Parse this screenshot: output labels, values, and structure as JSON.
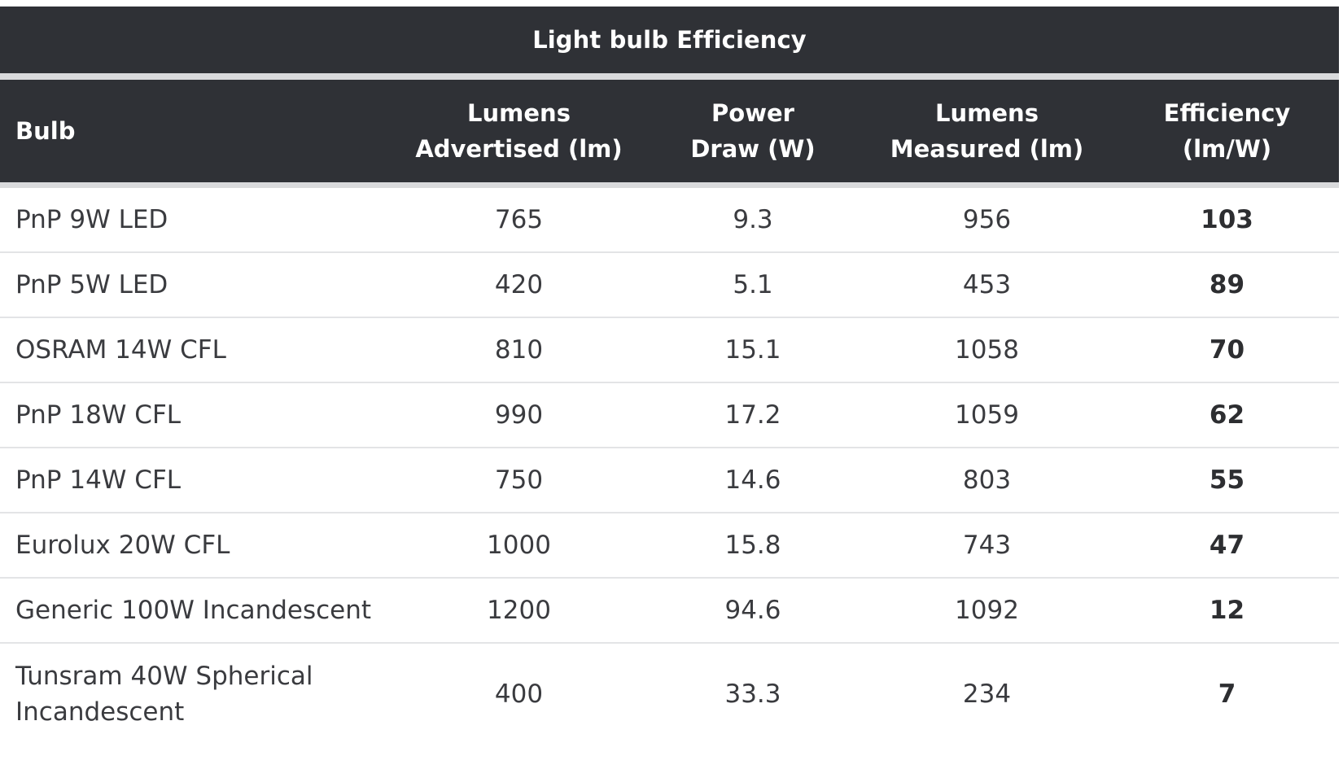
{
  "chart_data": {
    "type": "table",
    "title": "Light bulb Efficiency",
    "columns": [
      "Bulb",
      "Lumens\nAdvertised (lm)",
      "Power\nDraw (W)",
      "Lumens\nMeasured (lm)",
      "Efficiency\n(lm/W)"
    ],
    "rows": [
      {
        "bulb": "PnP 9W LED",
        "lumens_advertised": "765",
        "power_draw": "9.3",
        "lumens_measured": "956",
        "efficiency": "103"
      },
      {
        "bulb": "PnP 5W LED",
        "lumens_advertised": "420",
        "power_draw": "5.1",
        "lumens_measured": "453",
        "efficiency": "89"
      },
      {
        "bulb": "OSRAM 14W CFL",
        "lumens_advertised": "810",
        "power_draw": "15.1",
        "lumens_measured": "1058",
        "efficiency": "70"
      },
      {
        "bulb": "PnP 18W CFL",
        "lumens_advertised": "990",
        "power_draw": "17.2",
        "lumens_measured": "1059",
        "efficiency": "62"
      },
      {
        "bulb": "PnP 14W CFL",
        "lumens_advertised": "750",
        "power_draw": "14.6",
        "lumens_measured": "803",
        "efficiency": "55"
      },
      {
        "bulb": "Eurolux 20W CFL",
        "lumens_advertised": "1000",
        "power_draw": "15.8",
        "lumens_measured": "743",
        "efficiency": "47"
      },
      {
        "bulb": "Generic 100W Incandescent",
        "lumens_advertised": "1200",
        "power_draw": "94.6",
        "lumens_measured": "1092",
        "efficiency": "12"
      },
      {
        "bulb": "Tunsram 40W Spherical\nIncandescent",
        "lumens_advertised": "400",
        "power_draw": "33.3",
        "lumens_measured": "234",
        "efficiency": "7"
      }
    ]
  },
  "colors": {
    "header_background": "#2f3136",
    "separator": "#d9dadc",
    "row_text": "#3a3b3f",
    "row_divider": "#e3e4e6"
  }
}
